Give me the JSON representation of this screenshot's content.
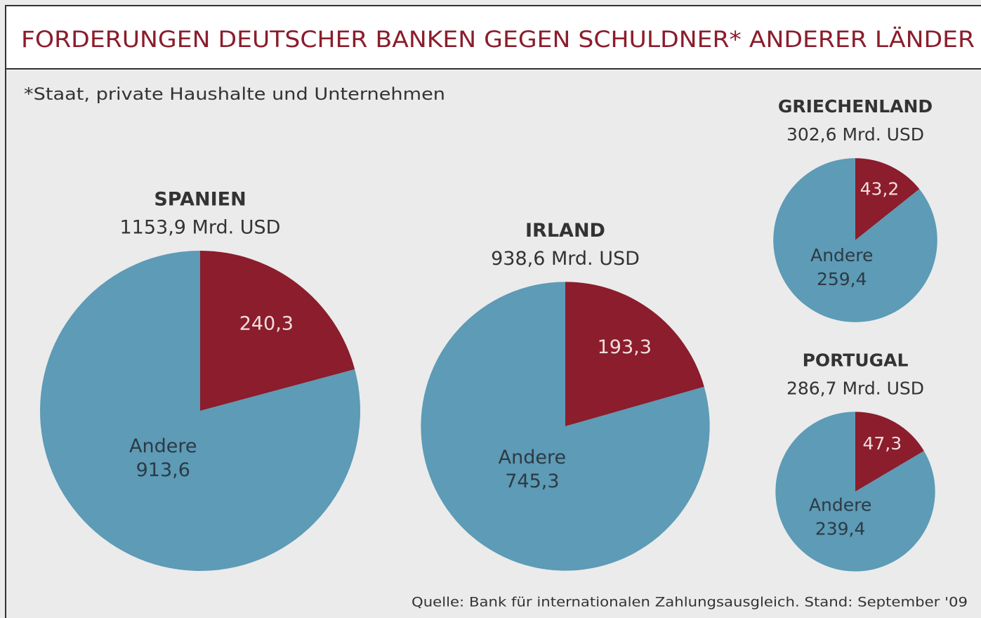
{
  "title": "FORDERUNGEN DEUTSCHER BANKEN GEGEN SCHULDNER* ANDERER LÄNDER",
  "note": "*Staat, private Haushalte und Unternehmen",
  "source": "Quelle: Bank für internationalen Zahlungsausgleich. Stand: September '09",
  "chart_data": [
    {
      "type": "pie",
      "title": "SPANIEN",
      "subtitle": "1153,9 Mrd. USD",
      "categories": [
        null,
        "Andere"
      ],
      "values": [
        240.3,
        913.6
      ],
      "value_labels": [
        "240,3",
        "913,6"
      ],
      "colors": [
        "#8b1d2c",
        "#5d9bb6"
      ]
    },
    {
      "type": "pie",
      "title": "IRLAND",
      "subtitle": "938,6 Mrd. USD",
      "categories": [
        null,
        "Andere"
      ],
      "values": [
        193.3,
        745.3
      ],
      "value_labels": [
        "193,3",
        "745,3"
      ],
      "colors": [
        "#8b1d2c",
        "#5d9bb6"
      ]
    },
    {
      "type": "pie",
      "title": "GRIECHENLAND",
      "subtitle": "302,6 Mrd. USD",
      "categories": [
        null,
        "Andere"
      ],
      "values": [
        43.2,
        259.4
      ],
      "value_labels": [
        "43,2",
        "259,4"
      ],
      "colors": [
        "#8b1d2c",
        "#5d9bb6"
      ]
    },
    {
      "type": "pie",
      "title": "PORTUGAL",
      "subtitle": "286,7 Mrd. USD",
      "categories": [
        null,
        "Andere"
      ],
      "values": [
        47.3,
        239.4
      ],
      "value_labels": [
        "47,3",
        "239,4"
      ],
      "colors": [
        "#8b1d2c",
        "#5d9bb6"
      ]
    }
  ]
}
